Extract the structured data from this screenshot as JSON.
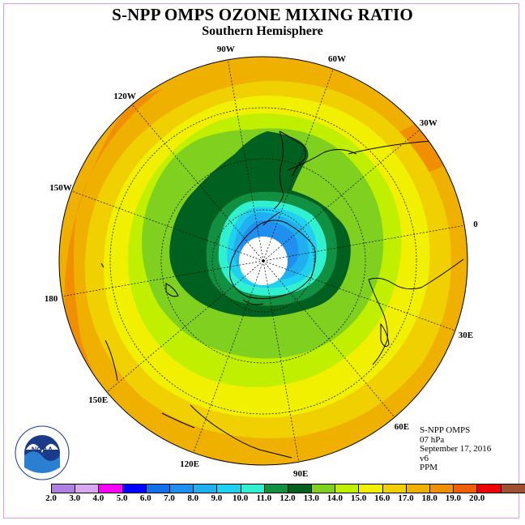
{
  "title": "S-NPP OMPS OZONE MIXING RATIO",
  "subtitle": "Southern Hemisphere",
  "longitude_labels": [
    "90W",
    "60W",
    "30W",
    "0",
    "30E",
    "60E",
    "90E",
    "120E",
    "150E",
    "180",
    "150W",
    "120W"
  ],
  "info": {
    "instrument": "S-NPP OMPS",
    "level": "07 hPa",
    "date": "September 17, 2016",
    "version": "v6",
    "units": "PPM"
  },
  "logo": {
    "name": "NOAA",
    "ring_text": "NATIONAL OCEANIC AND ATMOSPHERIC ADMINISTRATION U.S. DEPARTMENT OF COMMERCE"
  },
  "colorbar": {
    "labels": [
      "2.0",
      "3.0",
      "4.0",
      "5.0",
      "6.0",
      "7.0",
      "8.0",
      "9.0",
      "10.0",
      "11.0",
      "12.0",
      "13.0",
      "14.0",
      "15.0",
      "16.0",
      "17.0",
      "18.0",
      "19.0",
      "20.0"
    ],
    "colors": [
      "#b080e0",
      "#d8a8f0",
      "#ff00ff",
      "#0000ff",
      "#1070e8",
      "#2090f0",
      "#20b0f0",
      "#20d0f0",
      "#30f0d0",
      "#109040",
      "#006020",
      "#80d020",
      "#c0f000",
      "#f0f000",
      "#f0d000",
      "#f0b000",
      "#f09000",
      "#f06000",
      "#f00000",
      "#a05030"
    ]
  },
  "colors": {
    "background": "#ffffff",
    "frame": "#d9a0d9"
  }
}
